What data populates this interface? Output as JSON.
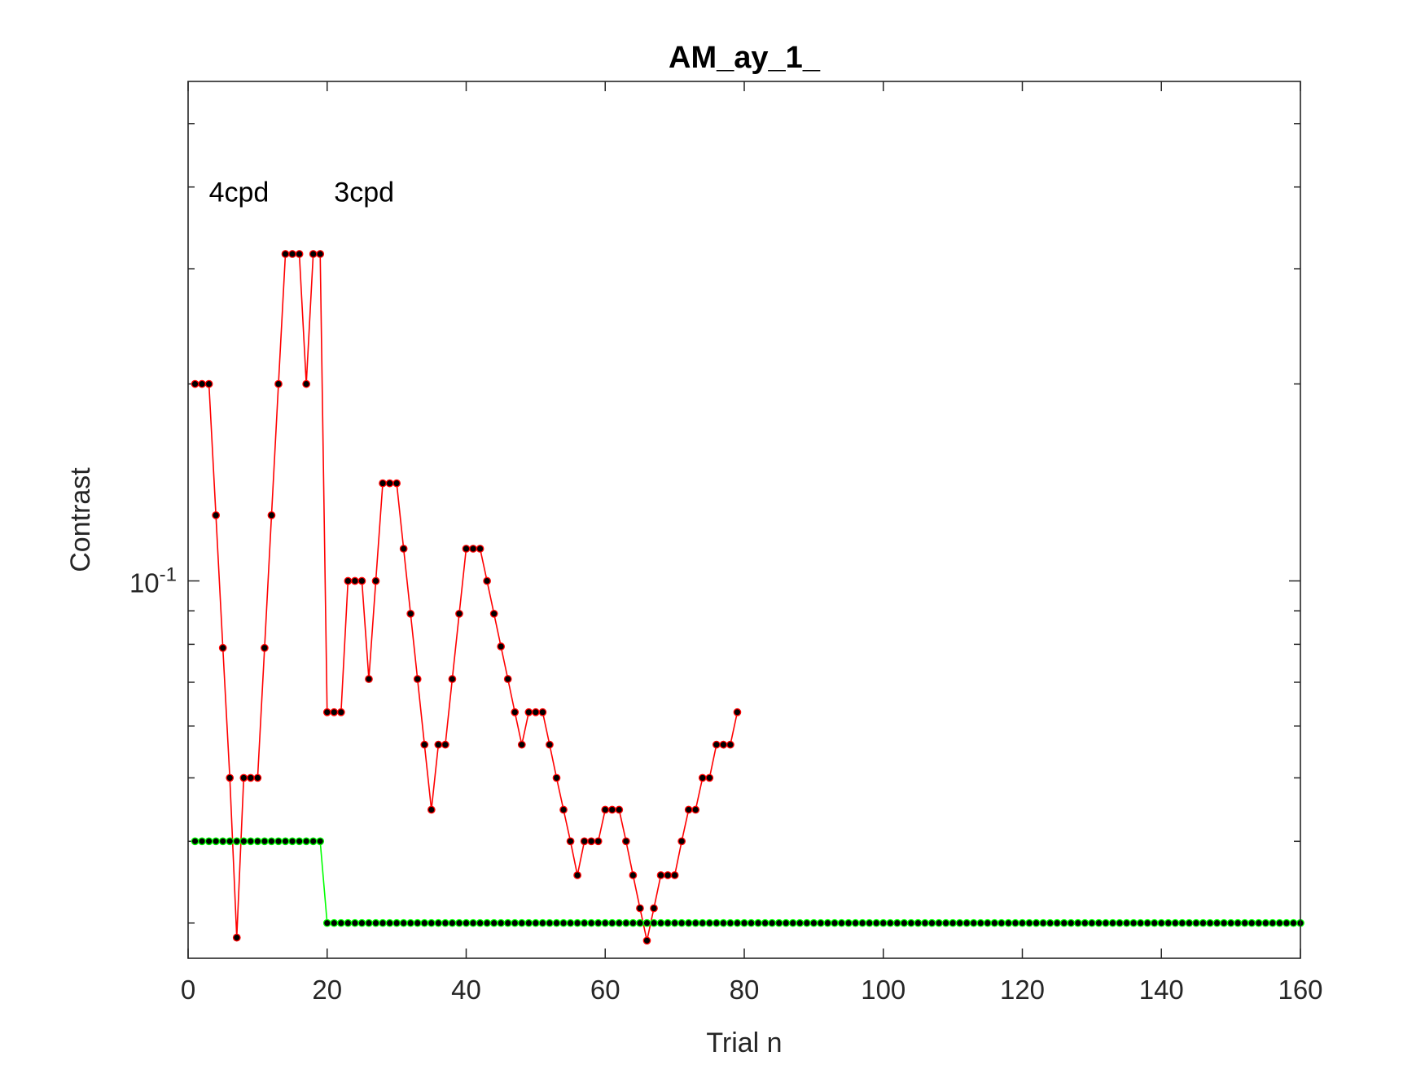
{
  "chart_data": {
    "type": "line",
    "title": "AM_ay_1_",
    "xlabel": "Trial n",
    "ylabel": "Contrast",
    "xlim": [
      0,
      160
    ],
    "ylim": [
      0.0265,
      0.58
    ],
    "yscale": "log",
    "grid": false,
    "box": true,
    "xticks": [
      0,
      20,
      40,
      60,
      80,
      100,
      120,
      140,
      160
    ],
    "yticks": [
      {
        "value": 0.1,
        "base": "10",
        "exponent": "-1"
      }
    ],
    "annotations": [
      {
        "text": "4cpd",
        "x": 3,
        "y": 0.38
      },
      {
        "text": "3cpd",
        "x": 21,
        "y": 0.38
      }
    ],
    "series": [
      {
        "color": "#ff0000",
        "marker_color": "#000000",
        "x": [
          1,
          2,
          3,
          4,
          5,
          6,
          7,
          8,
          9,
          10,
          11,
          12,
          13,
          14,
          15,
          16,
          17,
          18,
          19,
          20,
          21,
          22,
          23,
          24,
          25,
          26,
          27,
          28,
          29,
          30,
          31,
          32,
          33,
          34,
          35,
          36,
          37,
          38,
          39,
          40,
          41,
          42,
          43,
          44,
          45,
          46,
          47,
          48,
          49,
          50,
          51,
          52,
          53,
          54,
          55,
          56,
          57,
          58,
          59,
          60,
          61,
          62,
          63,
          64,
          65,
          66,
          67,
          68,
          69,
          70,
          71,
          72,
          73,
          74,
          75,
          76,
          77,
          78,
          79
        ],
        "y": [
          0.2,
          0.2,
          0.2,
          0.126,
          0.079,
          0.05,
          0.0285,
          0.05,
          0.05,
          0.05,
          0.079,
          0.126,
          0.2,
          0.316,
          0.316,
          0.316,
          0.2,
          0.316,
          0.316,
          0.063,
          0.063,
          0.063,
          0.1,
          0.1,
          0.1,
          0.0708,
          0.1,
          0.141,
          0.141,
          0.141,
          0.112,
          0.0891,
          0.0708,
          0.0562,
          0.0447,
          0.0562,
          0.0562,
          0.0708,
          0.0891,
          0.112,
          0.112,
          0.112,
          0.1,
          0.0891,
          0.0794,
          0.0708,
          0.063,
          0.0562,
          0.063,
          0.063,
          0.063,
          0.0562,
          0.05,
          0.0447,
          0.04,
          0.0355,
          0.04,
          0.04,
          0.04,
          0.0447,
          0.0447,
          0.0447,
          0.04,
          0.0355,
          0.0316,
          0.0282,
          0.0316,
          0.0355,
          0.0355,
          0.0355,
          0.04,
          0.0447,
          0.0447,
          0.05,
          0.05,
          0.0562,
          0.0562,
          0.0562,
          0.063
        ]
      },
      {
        "color": "#00ff00",
        "marker_color": "#000000",
        "segments": [
          {
            "from": 1,
            "to": 19,
            "value": 0.04
          },
          {
            "from": 20,
            "to": 160,
            "value": 0.03
          }
        ]
      }
    ]
  }
}
